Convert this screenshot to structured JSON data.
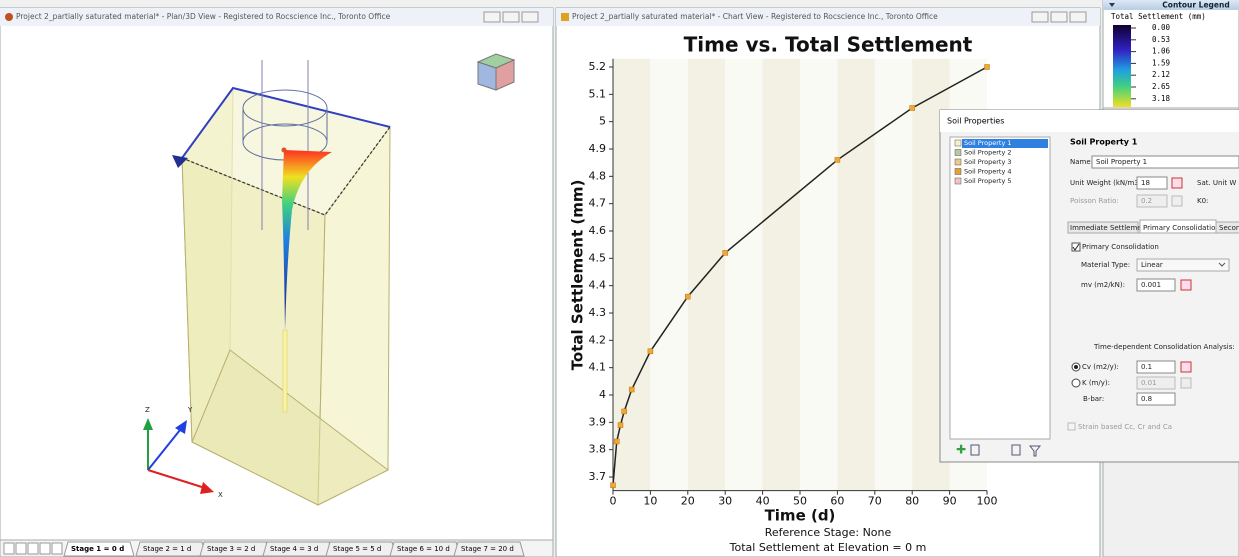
{
  "windows": {
    "plan_view": {
      "title": "Project 2_partially saturated material* - Plan/3D View - Registered to Rocscience Inc., Toronto Office"
    },
    "chart_view": {
      "title": "Project 2_partially saturated material* - Chart View - Registered to Rocscience Inc., Toronto Office"
    }
  },
  "view3d": {
    "axis_labels": [
      "Z",
      "Y",
      "X"
    ]
  },
  "stage_tabs": [
    "Stage 1 = 0 d",
    "Stage 2 = 1 d",
    "Stage 3 = 2 d",
    "Stage 4 = 3 d",
    "Stage 5 = 5 d",
    "Stage 6 = 10 d",
    "Stage 7 = 20 d"
  ],
  "chart_data": {
    "type": "line",
    "title": "Time vs. Total Settlement",
    "xlabel": "Time (d)",
    "ylabel": "Total Settlement (mm)",
    "x": [
      0,
      1,
      2,
      3,
      5,
      10,
      20,
      30,
      60,
      80,
      100
    ],
    "values": [
      3.67,
      3.83,
      3.89,
      3.94,
      4.02,
      4.16,
      4.36,
      4.52,
      4.86,
      5.05,
      5.2
    ],
    "color": "#222222",
    "marker_color": "#f0a830",
    "xlim": [
      0,
      100
    ],
    "xticks": [
      0,
      10,
      20,
      30,
      40,
      50,
      60,
      70,
      80,
      90,
      100
    ],
    "ylim": [
      3.65,
      5.23
    ],
    "yticks": [
      3.7,
      3.8,
      3.9,
      4,
      4.1,
      4.2,
      4.3,
      4.4,
      4.5,
      4.6,
      4.7,
      4.8,
      4.9,
      5,
      5.1,
      5.2
    ],
    "annotations": [
      "Reference Stage: None",
      "Total Settlement at Elevation = 0 m"
    ]
  },
  "contour_legend": {
    "title": "Contour Legend",
    "subtitle": "Total Settlement (mm)",
    "labels": [
      "0.00",
      "0.53",
      "1.06",
      "1.59",
      "2.12",
      "2.65",
      "3.18"
    ]
  },
  "dialog": {
    "title": "Soil Properties",
    "list": [
      "Soil Property 1",
      "Soil Property 2",
      "Soil Property 3",
      "Soil Property 4",
      "Soil Property 5"
    ],
    "heading": "Soil Property 1",
    "name_label": "Name:",
    "name_value": "Soil Property 1",
    "unit_weight_label": "Unit Weight (kN/m3):",
    "unit_weight_value": "18",
    "sat_unit_weight_label": "Sat. Unit W",
    "poisson_label": "Poisson Ratio:",
    "poisson_value": "0.2",
    "k0_label": "K0:",
    "tabs": [
      "Immediate Settlement",
      "Primary Consolidation",
      "Secon"
    ],
    "primary_checkbox": "Primary Consolidation",
    "material_type_label": "Material Type:",
    "material_type_value": "Linear",
    "mv_label": "mv (m2/kN):",
    "mv_value": "0.001",
    "time_dependent_label": "Time-dependent Consolidation Analysis:",
    "cv_label": "Cv (m2/y):",
    "cv_value": "0.1",
    "k_label": "K (m/y):",
    "k_value": "0.01",
    "bbar_label": "B-bar:",
    "bbar_value": "0.8",
    "strain_checkbox": "Strain based Cc, Cr and Ca"
  }
}
